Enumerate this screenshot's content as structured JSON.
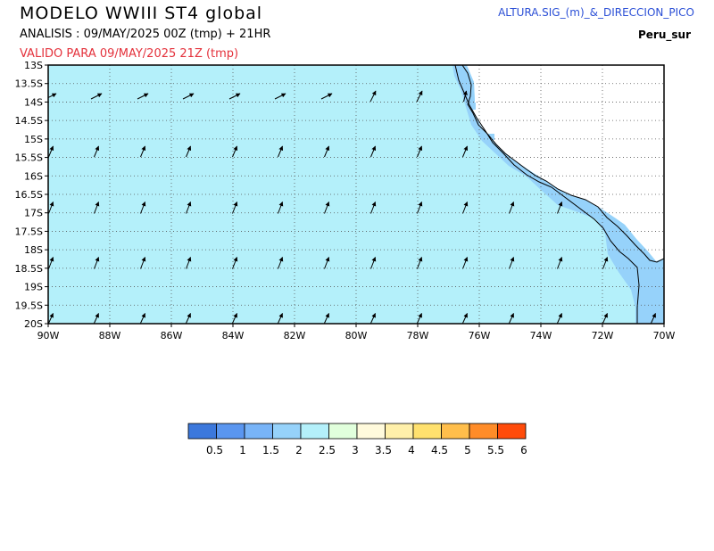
{
  "header": {
    "title": "MODELO  WWIII  ST4  global",
    "analysis": "ANALISIS : 09/MAY/2025 00Z  (tmp) + 21HR",
    "valid": "VALIDO PARA  09/MAY/2025 21Z  (tmp)",
    "product": "ALTURA.SIG_(m)_&_DIRECCION_PICO",
    "region": "Peru_sur"
  },
  "map": {
    "lat_labels": [
      "13S",
      "13.5S",
      "14S",
      "14.5S",
      "15S",
      "15.5S",
      "16S",
      "16.5S",
      "17S",
      "17.5S",
      "18S",
      "18.5S",
      "19S",
      "19.5S",
      "20S"
    ],
    "lon_labels": [
      "90W",
      "88W",
      "86W",
      "84W",
      "82W",
      "80W",
      "78W",
      "76W",
      "74W",
      "72W",
      "70W"
    ],
    "ocean_color": "#b4f0fa",
    "near_shore_color": "#96d2fa",
    "arrow_direction": "north-northeast"
  },
  "colorbar": {
    "labels": [
      "0.5",
      "1",
      "1.5",
      "2",
      "2.5",
      "3",
      "3.5",
      "4",
      "4.5",
      "5",
      "5.5",
      "6"
    ],
    "colors": [
      "#3c78dc",
      "#5a96f0",
      "#78b4f8",
      "#96d2fa",
      "#b4f0fa",
      "#e1ffdc",
      "#fffadc",
      "#fff0aa",
      "#ffe16e",
      "#ffbe4b",
      "#ff8c28",
      "#ff4b0a"
    ]
  }
}
